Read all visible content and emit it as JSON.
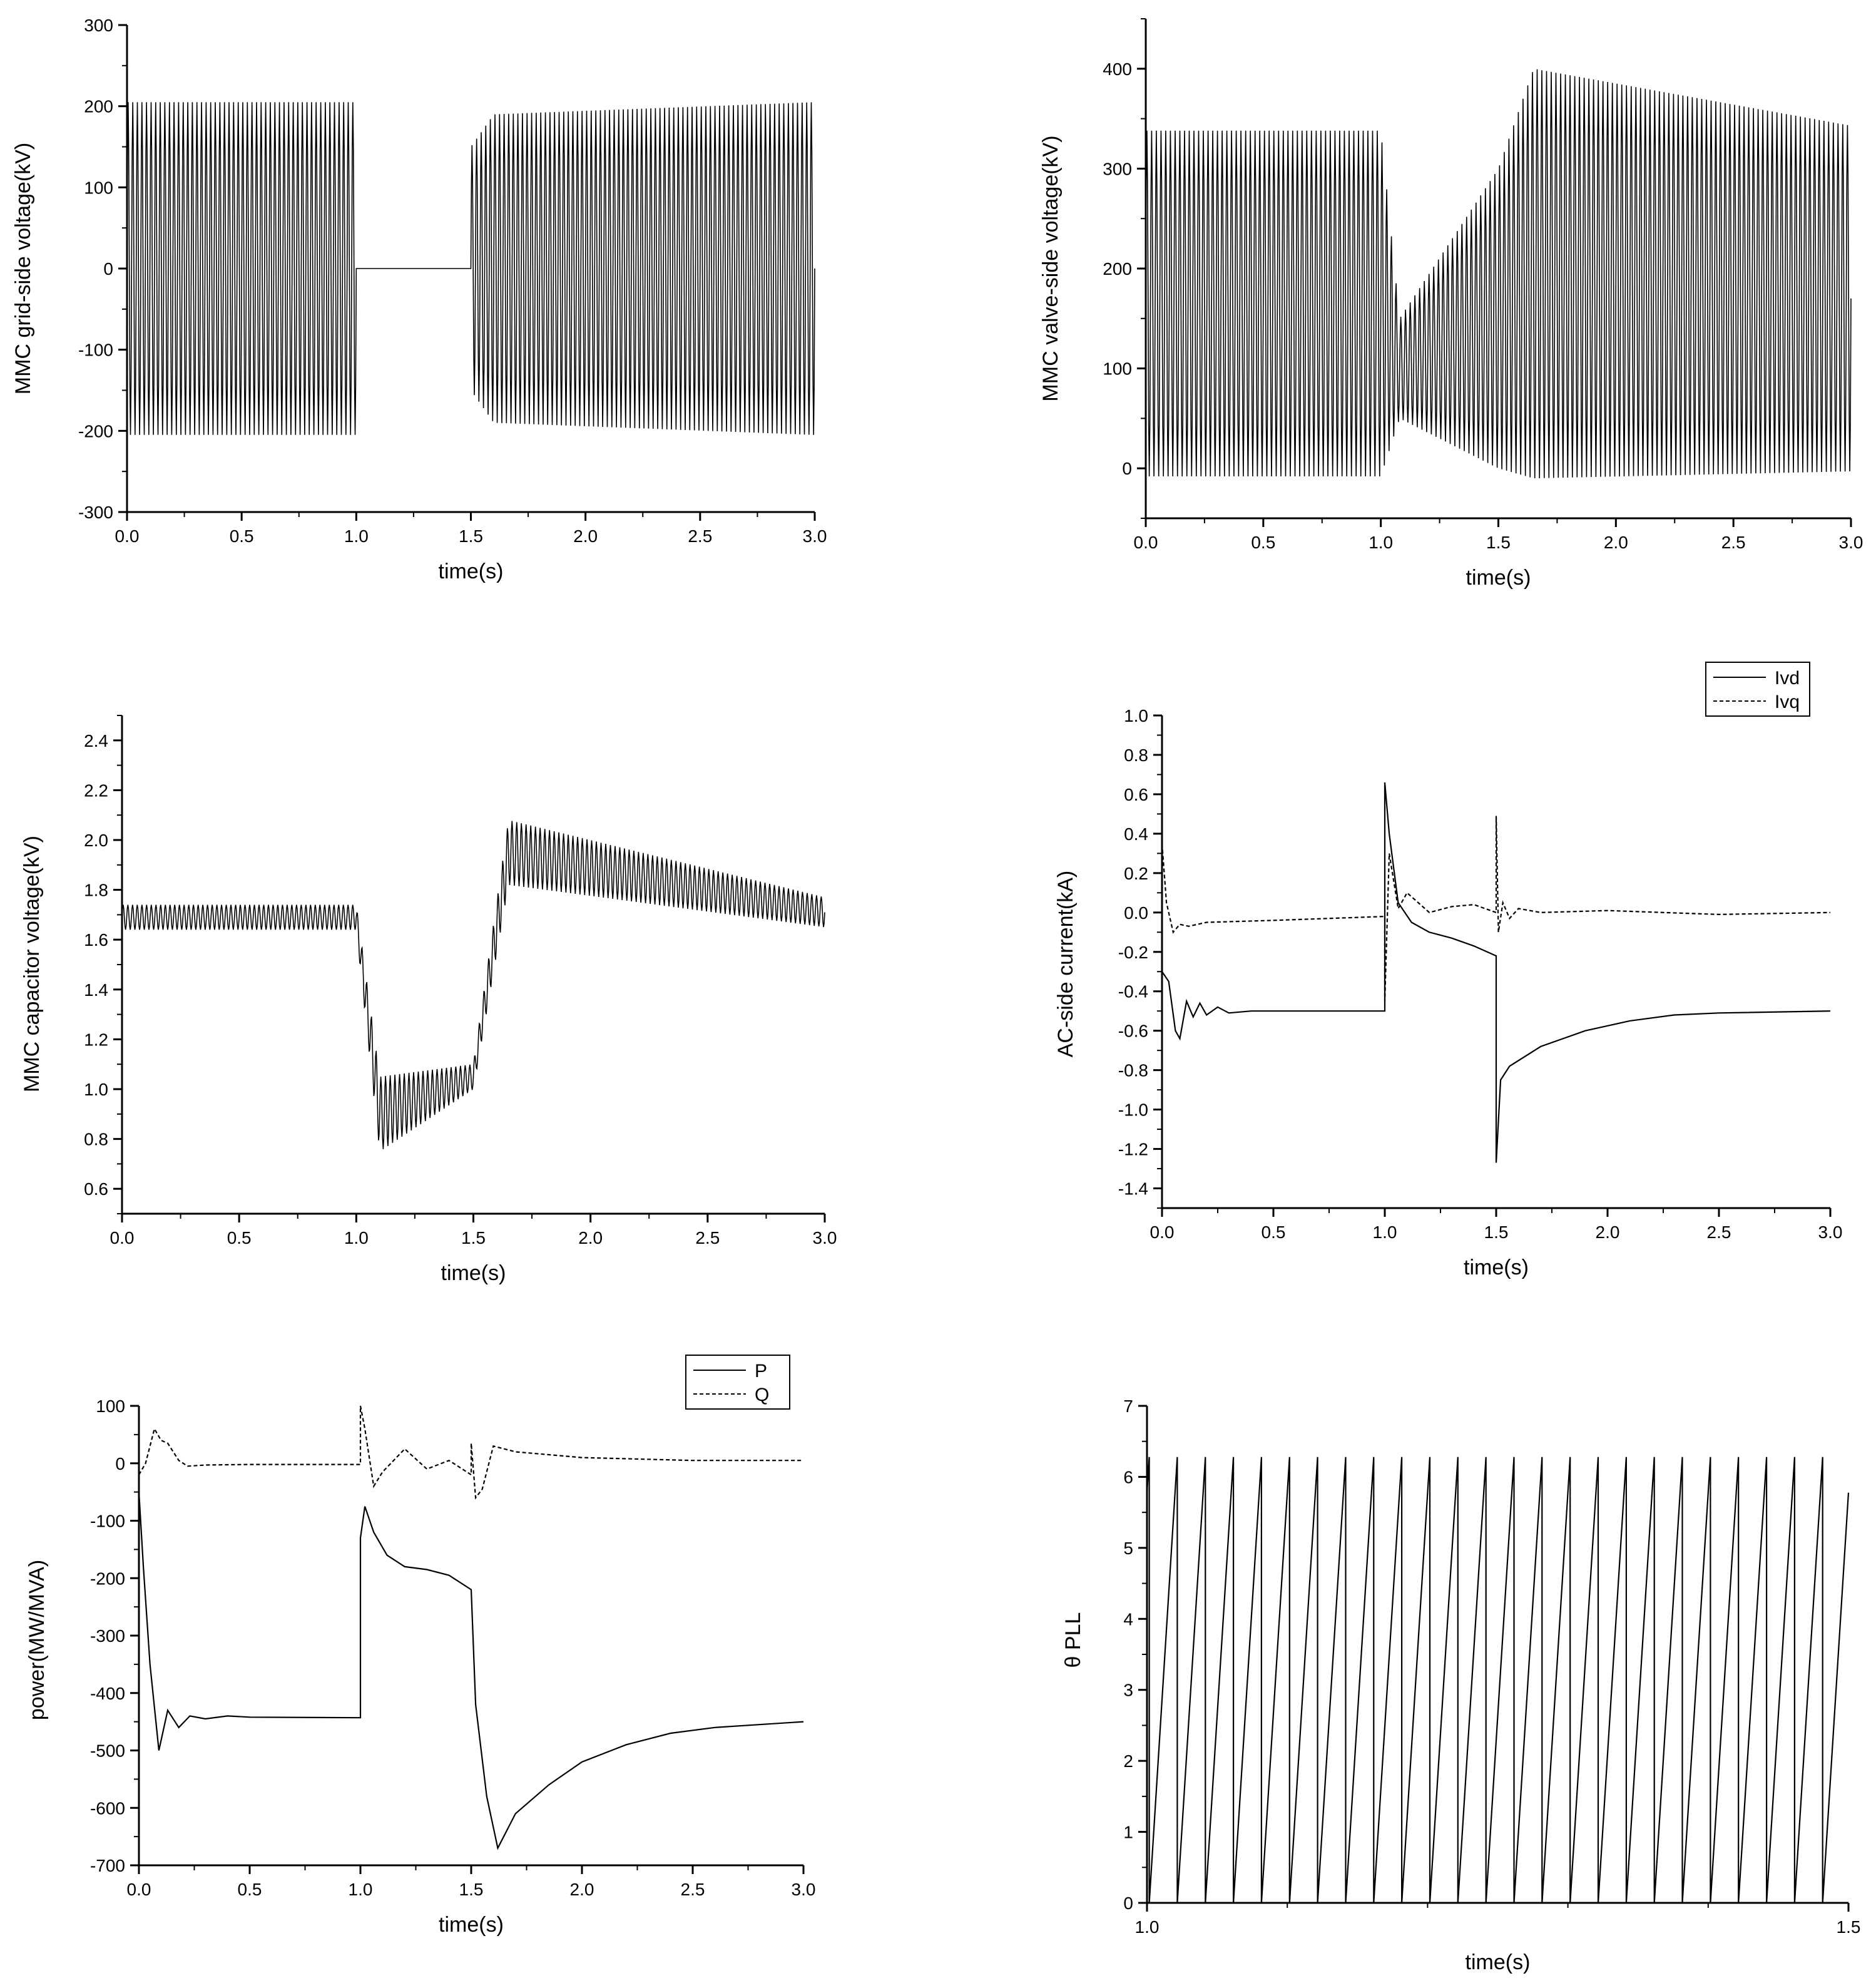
{
  "chart_data": [
    {
      "type": "line",
      "xlabel": "time(s)",
      "ylabel": "MMC grid-side voltage(kV)",
      "xlim": [
        0.0,
        3.0
      ],
      "ylim": [
        -300,
        300
      ],
      "xticks": [
        "0.0",
        "0.5",
        "1.0",
        "1.5",
        "2.0",
        "2.5",
        "3.0"
      ],
      "yticks": [
        "300",
        "200",
        "100",
        "0",
        "-100",
        "-200",
        "-300"
      ],
      "series": [
        {
          "style": "solid",
          "kind": "oscillation",
          "freq_hz": 50,
          "segments": [
            {
              "x": [
                0.0,
                1.0
              ],
              "center": [
                0,
                0
              ],
              "amp": [
                205,
                205
              ]
            },
            {
              "x": [
                1.0,
                1.5
              ],
              "center": [
                0,
                0
              ],
              "amp": [
                0,
                0
              ]
            },
            {
              "x": [
                1.5,
                1.6
              ],
              "center": [
                0,
                0
              ],
              "amp": [
                150,
                190
              ]
            },
            {
              "x": [
                1.6,
                3.0
              ],
              "center": [
                0,
                0
              ],
              "amp": [
                190,
                205
              ]
            }
          ]
        }
      ]
    },
    {
      "type": "line",
      "xlabel": "time(s)",
      "ylabel": "MMC valve-side voltage(kV)",
      "xlim": [
        0.0,
        3.0
      ],
      "ylim": [
        -50,
        450
      ],
      "xticks": [
        "0.0",
        "0.5",
        "1.0",
        "1.5",
        "2.0",
        "2.5",
        "3.0"
      ],
      "yticks": [
        "400",
        "300",
        "200",
        "100",
        "0"
      ],
      "series": [
        {
          "style": "solid",
          "kind": "oscillation",
          "freq_hz": 50,
          "segments": [
            {
              "x": [
                0.0,
                1.0
              ],
              "center": [
                165,
                165
              ],
              "amp": [
                173,
                173
              ]
            },
            {
              "x": [
                1.0,
                1.08
              ],
              "center": [
                165,
                100
              ],
              "amp": [
                173,
                50
              ]
            },
            {
              "x": [
                1.08,
                1.5
              ],
              "center": [
                100,
                150
              ],
              "amp": [
                50,
                150
              ]
            },
            {
              "x": [
                1.5,
                1.65
              ],
              "center": [
                150,
                195
              ],
              "amp": [
                150,
                205
              ]
            },
            {
              "x": [
                1.65,
                3.0
              ],
              "center": [
                195,
                170
              ],
              "amp": [
                205,
                173
              ]
            }
          ]
        }
      ]
    },
    {
      "type": "line",
      "xlabel": "time(s)",
      "ylabel": "MMC capacitor voltage(kV)",
      "xlim": [
        0.0,
        3.0
      ],
      "ylim": [
        0.5,
        2.5
      ],
      "xticks": [
        "0.0",
        "0.5",
        "1.0",
        "1.5",
        "2.0",
        "2.5",
        "3.0"
      ],
      "yticks": [
        "2.4",
        "2.2",
        "2.0",
        "1.8",
        "1.6",
        "1.4",
        "1.2",
        "1.0",
        "0.8",
        "0.6"
      ],
      "series": [
        {
          "style": "solid",
          "kind": "oscillation",
          "freq_hz": 50,
          "segments": [
            {
              "x": [
                0.0,
                1.0
              ],
              "center": [
                1.69,
                1.69
              ],
              "amp": [
                0.05,
                0.05
              ]
            },
            {
              "x": [
                1.0,
                1.1
              ],
              "center": [
                1.69,
                0.9
              ],
              "amp": [
                0.05,
                0.15
              ]
            },
            {
              "x": [
                1.1,
                1.5
              ],
              "center": [
                0.9,
                1.05
              ],
              "amp": [
                0.15,
                0.05
              ]
            },
            {
              "x": [
                1.5,
                1.65
              ],
              "center": [
                1.05,
                1.95
              ],
              "amp": [
                0.05,
                0.13
              ]
            },
            {
              "x": [
                1.65,
                3.0
              ],
              "center": [
                1.95,
                1.71
              ],
              "amp": [
                0.13,
                0.06
              ]
            }
          ]
        }
      ]
    },
    {
      "type": "line",
      "xlabel": "time(s)",
      "ylabel": "AC-side current(kA)",
      "xlim": [
        0.0,
        3.0
      ],
      "ylim": [
        -1.5,
        1.0
      ],
      "xticks": [
        "0.0",
        "0.5",
        "1.0",
        "1.5",
        "2.0",
        "2.5",
        "3.0"
      ],
      "yticks": [
        "1.0",
        "0.8",
        "0.6",
        "0.4",
        "0.2",
        "0.0",
        "-0.2",
        "-0.4",
        "-0.6",
        "-0.8",
        "-1.0",
        "-1.2",
        "-1.4"
      ],
      "legend": {
        "position": "top-right"
      },
      "series": [
        {
          "name": "Ivd",
          "style": "solid",
          "kind": "polyline",
          "x": [
            0.0,
            0.03,
            0.06,
            0.08,
            0.11,
            0.14,
            0.17,
            0.2,
            0.25,
            0.3,
            0.4,
            0.5,
            1.0,
            1.0,
            1.02,
            1.06,
            1.12,
            1.2,
            1.3,
            1.4,
            1.5,
            1.5,
            1.52,
            1.56,
            1.7,
            1.9,
            2.1,
            2.3,
            2.5,
            3.0
          ],
          "y": [
            -0.3,
            -0.35,
            -0.6,
            -0.64,
            -0.45,
            -0.53,
            -0.46,
            -0.52,
            -0.48,
            -0.51,
            -0.5,
            -0.5,
            -0.5,
            0.66,
            0.4,
            0.05,
            -0.05,
            -0.1,
            -0.13,
            -0.17,
            -0.22,
            -1.27,
            -0.85,
            -0.78,
            -0.68,
            -0.6,
            -0.55,
            -0.52,
            -0.51,
            -0.5
          ]
        },
        {
          "name": "Ivq",
          "style": "dashed",
          "kind": "polyline",
          "x": [
            0.0,
            0.02,
            0.05,
            0.08,
            0.12,
            0.2,
            0.5,
            1.0,
            1.0,
            1.02,
            1.06,
            1.1,
            1.2,
            1.3,
            1.4,
            1.5,
            1.5,
            1.51,
            1.53,
            1.56,
            1.6,
            1.7,
            2.0,
            2.5,
            3.0
          ],
          "y": [
            0.35,
            0.05,
            -0.1,
            -0.06,
            -0.07,
            -0.05,
            -0.04,
            -0.02,
            -0.45,
            0.3,
            0.02,
            0.1,
            0.0,
            0.03,
            0.04,
            0.0,
            0.49,
            -0.1,
            0.05,
            -0.03,
            0.02,
            0.0,
            0.01,
            -0.01,
            0.0
          ]
        }
      ]
    },
    {
      "type": "line",
      "xlabel": "time(s)",
      "ylabel": "power(MW/MVA)",
      "xlim": [
        0.0,
        3.0
      ],
      "ylim": [
        -700,
        100
      ],
      "xticks": [
        "0.0",
        "0.5",
        "1.0",
        "1.5",
        "2.0",
        "2.5",
        "3.0"
      ],
      "yticks": [
        "100",
        "0",
        "-100",
        "-200",
        "-300",
        "-400",
        "-500",
        "-600",
        "-700"
      ],
      "legend": {
        "position": "top-right"
      },
      "series": [
        {
          "name": "P",
          "style": "solid",
          "kind": "polyline",
          "x": [
            0.0,
            0.02,
            0.05,
            0.09,
            0.13,
            0.18,
            0.23,
            0.3,
            0.4,
            0.5,
            1.0,
            1.0,
            1.02,
            1.06,
            1.12,
            1.2,
            1.3,
            1.4,
            1.5,
            1.52,
            1.57,
            1.62,
            1.7,
            1.85,
            2.0,
            2.2,
            2.4,
            2.6,
            2.8,
            3.0
          ],
          "y": [
            -50,
            -180,
            -350,
            -500,
            -430,
            -460,
            -440,
            -445,
            -440,
            -442,
            -443,
            -130,
            -75,
            -120,
            -160,
            -180,
            -185,
            -195,
            -220,
            -420,
            -580,
            -670,
            -610,
            -560,
            -520,
            -490,
            -470,
            -460,
            -455,
            -450
          ]
        },
        {
          "name": "Q",
          "style": "dashed",
          "kind": "polyline",
          "x": [
            0.0,
            0.03,
            0.07,
            0.1,
            0.13,
            0.18,
            0.22,
            0.3,
            0.5,
            1.0,
            1.0,
            1.02,
            1.06,
            1.1,
            1.2,
            1.3,
            1.4,
            1.5,
            1.5,
            1.52,
            1.55,
            1.6,
            1.7,
            2.0,
            2.5,
            3.0
          ],
          "y": [
            -20,
            0,
            60,
            40,
            35,
            5,
            -5,
            -3,
            -2,
            -2,
            100,
            60,
            -40,
            -15,
            25,
            -10,
            5,
            -20,
            35,
            -60,
            -45,
            30,
            20,
            10,
            5,
            5
          ]
        }
      ]
    },
    {
      "type": "line",
      "xlabel": "time(s)",
      "ylabel": "θ PLL",
      "xlim": [
        1.0,
        1.5
      ],
      "ylim": [
        0,
        7
      ],
      "xticks": [
        "1.0",
        "1.5"
      ],
      "yticks": [
        "7",
        "6",
        "5",
        "4",
        "3",
        "2",
        "1",
        "0"
      ],
      "series": [
        {
          "style": "solid",
          "kind": "sawtooth",
          "period_s": 0.02,
          "start_phase": 0.92,
          "max": 6.28
        }
      ]
    }
  ]
}
